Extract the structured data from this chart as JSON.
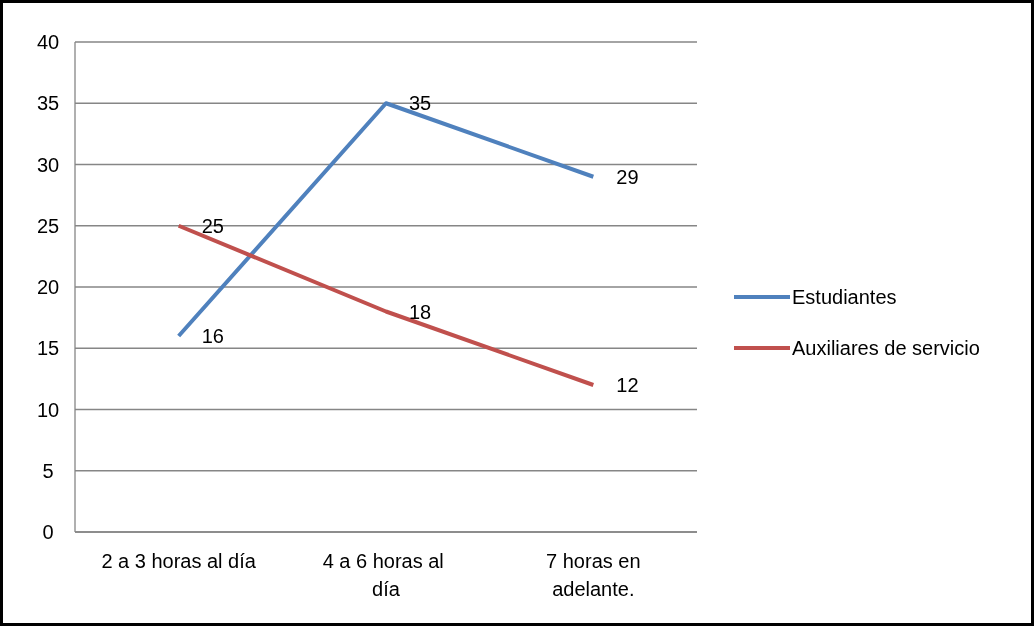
{
  "chart_data": {
    "type": "line",
    "categories": [
      "2 a 3 horas al día",
      "4 a 6 horas al  día",
      "7 horas en adelante."
    ],
    "series": [
      {
        "name": "Estudiantes",
        "color": "#4f81bd",
        "values": [
          16,
          35,
          29
        ]
      },
      {
        "name": "Auxiliares de servicio",
        "color": "#c0504d",
        "values": [
          25,
          18,
          12
        ]
      }
    ],
    "ylim": [
      0,
      40
    ],
    "yticks": [
      0,
      5,
      10,
      15,
      20,
      25,
      30,
      35,
      40
    ],
    "grid": "y",
    "legend": "right",
    "data_labels": true,
    "marker": "none",
    "line_style": "solid"
  }
}
